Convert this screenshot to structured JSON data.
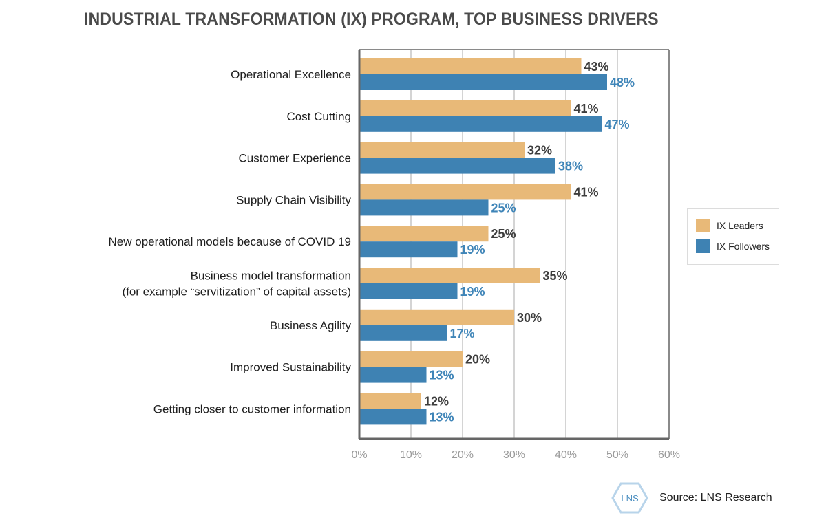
{
  "title": "INDUSTRIAL TRANSFORMATION (IX) PROGRAM, TOP BUSINESS DRIVERS",
  "source": "Source: LNS Research",
  "logo_text": "LNS",
  "colors": {
    "leaders": "#e8b978",
    "followers": "#3e82b3"
  },
  "chart_data": {
    "type": "bar",
    "orientation": "horizontal",
    "title": "INDUSTRIAL TRANSFORMATION (IX) PROGRAM, TOP BUSINESS DRIVERS",
    "categories": [
      [
        "Operational Excellence"
      ],
      [
        "Cost Cutting"
      ],
      [
        "Customer Experience"
      ],
      [
        "Supply Chain Visibility"
      ],
      [
        "New operational models because of COVID 19"
      ],
      [
        "Business model transformation",
        "(for example “servitization” of capital assets)"
      ],
      [
        "Business Agility"
      ],
      [
        "Improved Sustainability"
      ],
      [
        "Getting closer to customer information"
      ]
    ],
    "series": [
      {
        "name": "IX Leaders",
        "values": [
          43,
          41,
          32,
          41,
          25,
          35,
          30,
          20,
          12
        ]
      },
      {
        "name": "IX Followers",
        "values": [
          48,
          47,
          38,
          25,
          19,
          19,
          17,
          13,
          13
        ]
      }
    ],
    "xlim": [
      0,
      60
    ],
    "ticks": [
      0,
      10,
      20,
      30,
      40,
      50,
      60
    ],
    "tick_labels": [
      "0%",
      "10%",
      "20%",
      "30%",
      "40%",
      "50%",
      "60%"
    ],
    "value_suffix": "%",
    "grid": true,
    "legend_position": "right"
  }
}
